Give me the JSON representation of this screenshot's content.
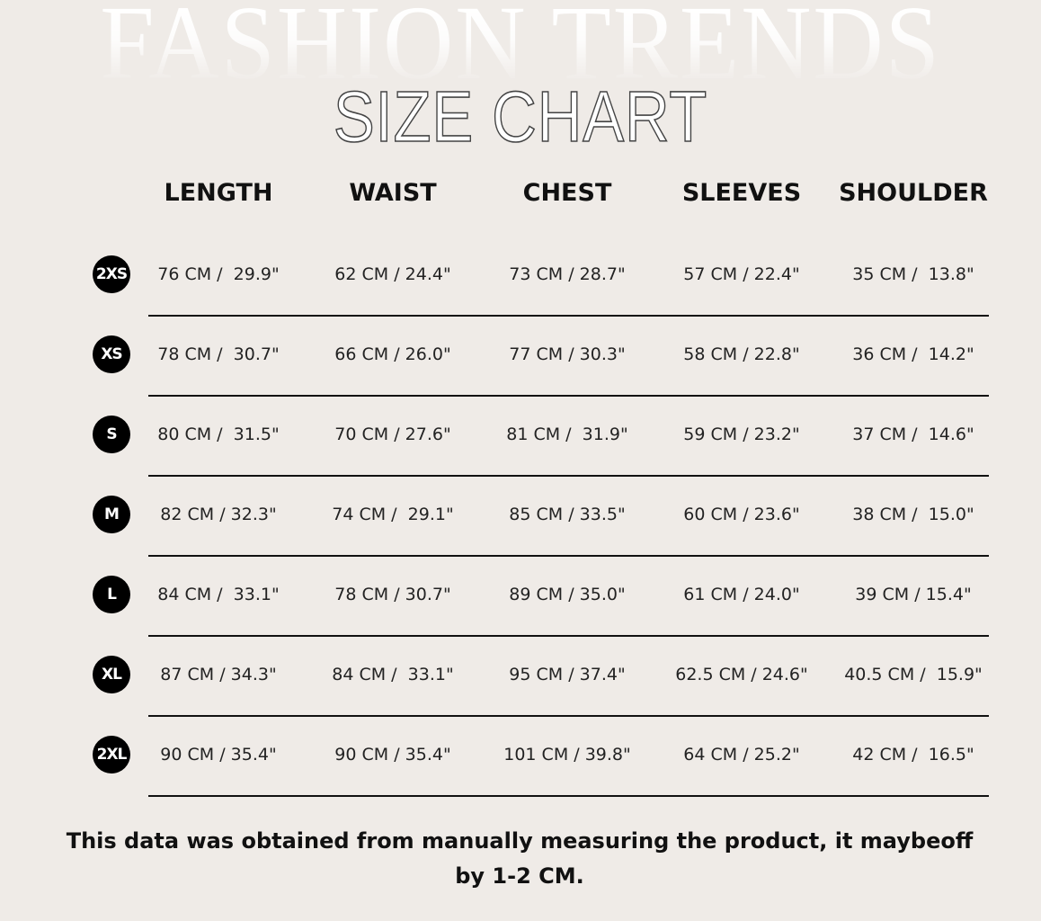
{
  "background_word": "FASHION TRENDS",
  "title": "SIZE CHART",
  "colors": {
    "background": "#efebe7",
    "badge": "#000000",
    "text": "#111111"
  },
  "columns": [
    "LENGTH",
    "WAIST",
    "CHEST",
    "SLEEVES",
    "SHOULDER"
  ],
  "rows": [
    {
      "size": "2XS",
      "values": [
        "76 CM /  29.9\"",
        "62 CM / 24.4\"",
        "73 CM / 28.7\"",
        "57 CM / 22.4\"",
        "35 CM /  13.8\""
      ]
    },
    {
      "size": "XS",
      "values": [
        "78 CM /  30.7\"",
        "66 CM / 26.0\"",
        "77 CM / 30.3\"",
        "58 CM / 22.8\"",
        "36 CM /  14.2\""
      ]
    },
    {
      "size": "S",
      "values": [
        "80 CM /  31.5\"",
        "70 CM / 27.6\"",
        "81 CM /  31.9\"",
        "59 CM / 23.2\"",
        "37 CM /  14.6\""
      ]
    },
    {
      "size": "M",
      "values": [
        "82 CM / 32.3\"",
        "74 CM /  29.1\"",
        "85 CM / 33.5\"",
        "60 CM / 23.6\"",
        "38 CM /  15.0\""
      ]
    },
    {
      "size": "L",
      "values": [
        "84 CM /  33.1\"",
        "78 CM / 30.7\"",
        "89 CM / 35.0\"",
        "61 CM / 24.0\"",
        "39 CM / 15.4\""
      ]
    },
    {
      "size": "XL",
      "values": [
        "87 CM / 34.3\"",
        "84 CM /  33.1\"",
        "95 CM / 37.4\"",
        "62.5 CM / 24.6\"",
        "40.5 CM /  15.9\""
      ]
    },
    {
      "size": "2XL",
      "values": [
        "90 CM / 35.4\"",
        "90 CM / 35.4\"",
        "101 CM / 39.8\"",
        "64 CM / 25.2\"",
        "42 CM /  16.5\""
      ]
    }
  ],
  "note": "This data was obtained from manually measuring the product, it maybeoff by 1-2 CM."
}
